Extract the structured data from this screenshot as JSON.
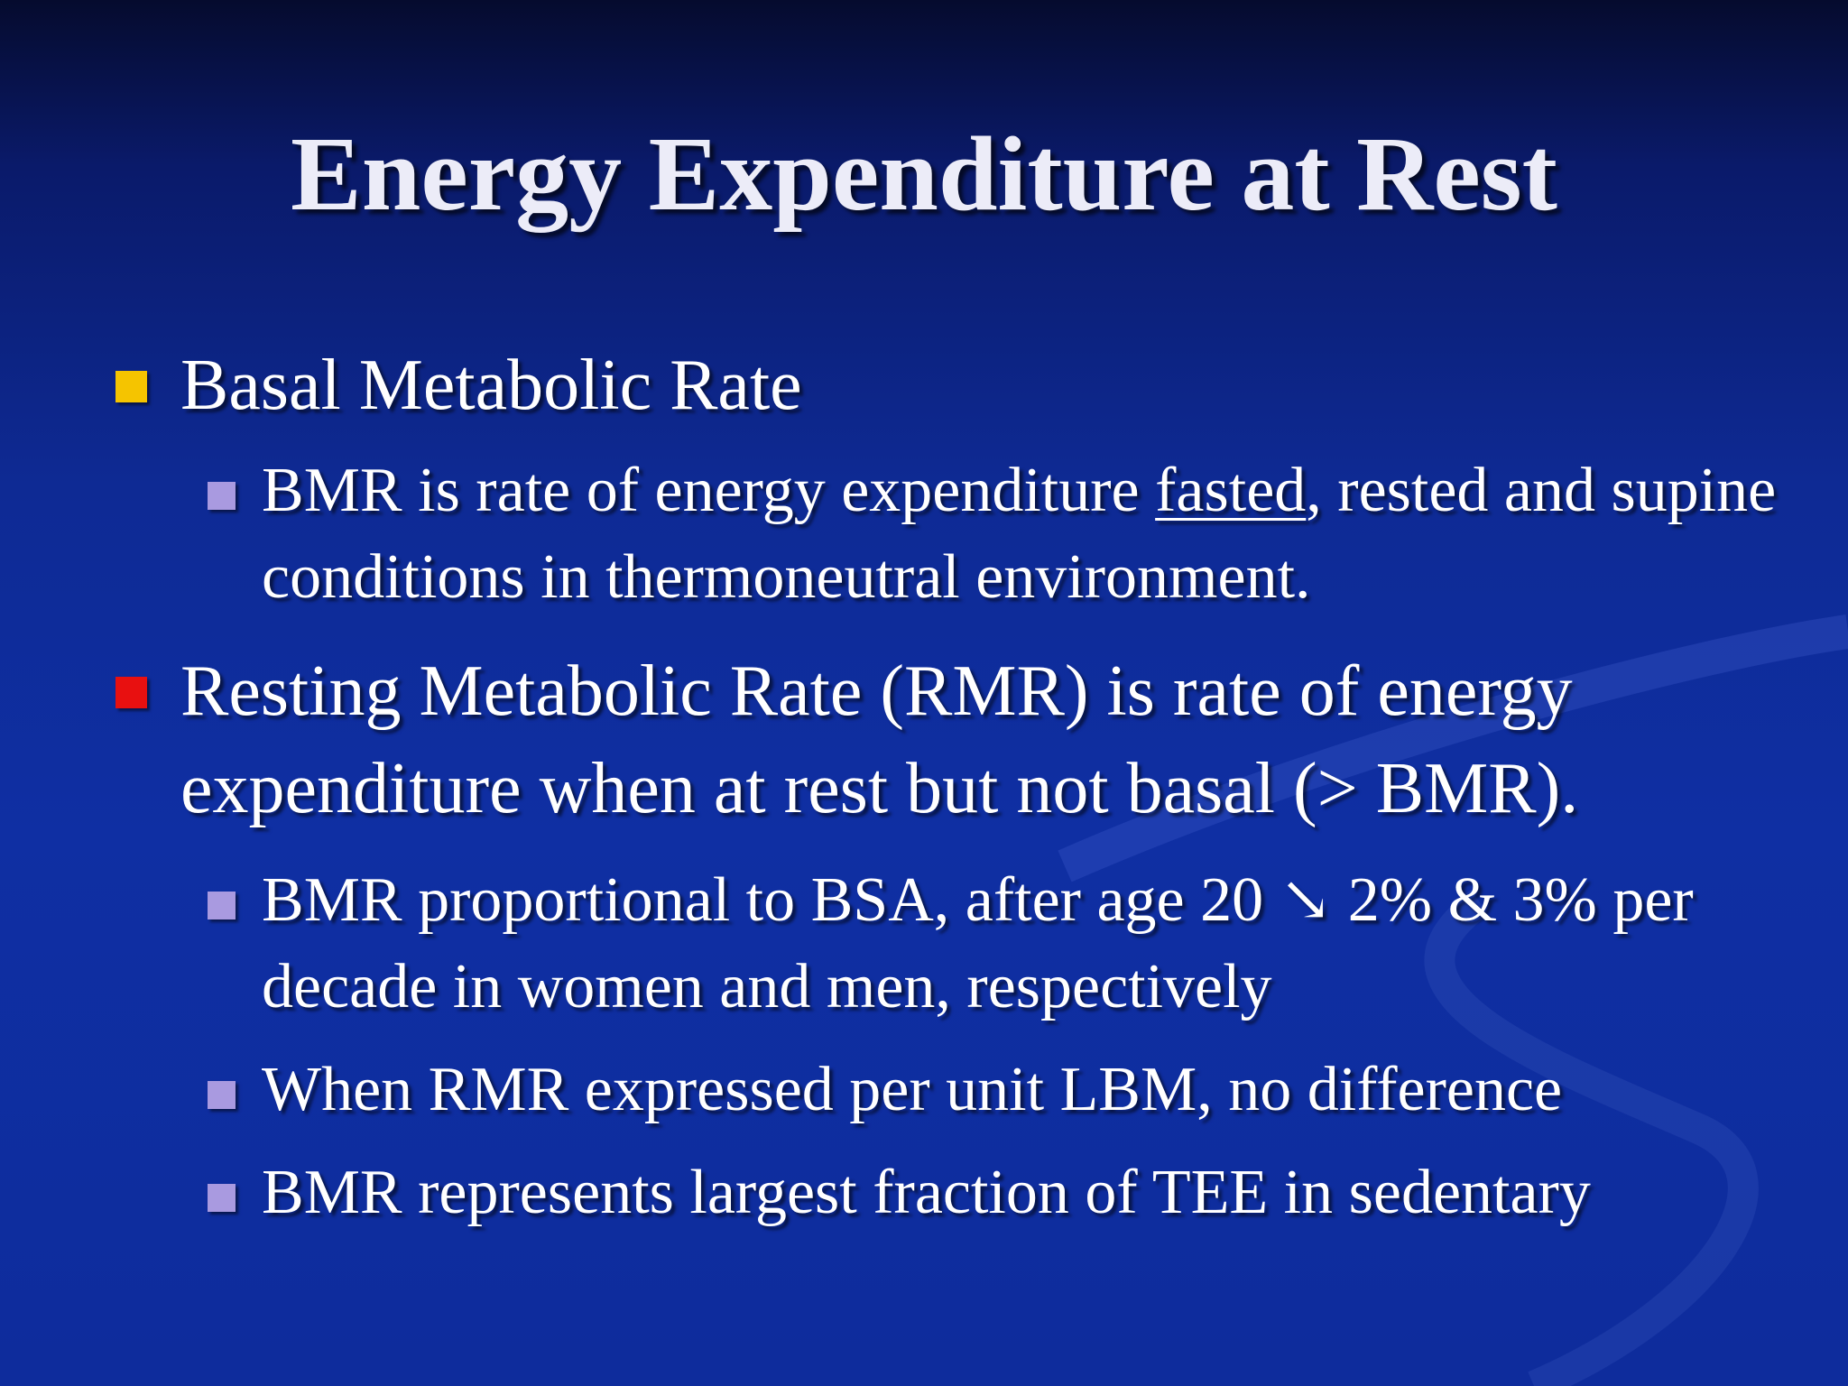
{
  "slide": {
    "title": "Energy Expenditure at Rest",
    "bullets": [
      {
        "level": 1,
        "bullet_color": "#f5c400",
        "text": "Basal Metabolic Rate"
      },
      {
        "level": 2,
        "bullet_color": "#a99ae0",
        "text_before": "BMR is rate of energy expenditure ",
        "underlined": "fasted",
        "text_after": ", rested and supine conditions in thermoneutral environment."
      },
      {
        "level": 1,
        "bullet_color": "#e81010",
        "text": "Resting Metabolic Rate (RMR) is rate of energy expenditure when at rest but not basal (> BMR)."
      },
      {
        "level": 2,
        "bullet_color": "#a99ae0",
        "text": "BMR proportional to BSA, after age 20 ↘ 2% & 3% per decade in women and men, respectively"
      },
      {
        "level": 2,
        "bullet_color": "#a99ae0",
        "text": "When RMR expressed per unit LBM, no difference"
      },
      {
        "level": 2,
        "bullet_color": "#a99ae0",
        "text": "BMR represents largest fraction of TEE in sedentary"
      }
    ]
  },
  "colors": {
    "background": "#0f2fa3",
    "title_text": "#ececf8",
    "body_text": "#ffffff"
  }
}
